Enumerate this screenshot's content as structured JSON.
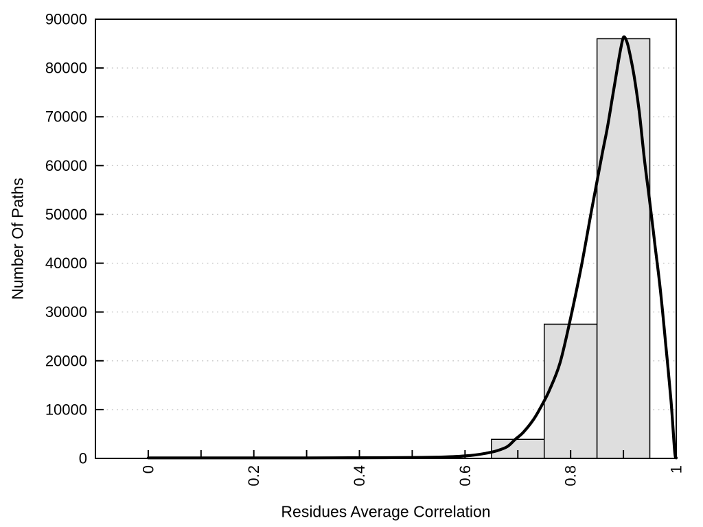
{
  "figure": {
    "background": "#ffffff"
  },
  "chart_data": {
    "type": "bar",
    "subtype": "histogram_with_density_curve",
    "title": "",
    "xlabel": "Residues Average Correlation",
    "ylabel": "Number Of Paths",
    "xlim": [
      -0.1,
      1.0
    ],
    "ylim": [
      0,
      90000
    ],
    "grid": "horizontal dotted gridlines at each y tick",
    "legend_position": "none",
    "x_ticks": {
      "start": 0,
      "end": 1,
      "step": 0.1,
      "label_rotation_deg": -90,
      "labeled": [
        [
          0,
          "0"
        ],
        [
          0.2,
          "0.2"
        ],
        [
          0.4,
          "0.4"
        ],
        [
          0.6,
          "0.6"
        ],
        [
          0.8,
          "0.8"
        ],
        [
          1,
          "1"
        ]
      ]
    },
    "y_ticks": [
      [
        0,
        "0"
      ],
      [
        10000,
        "10000"
      ],
      [
        20000,
        "20000"
      ],
      [
        30000,
        "30000"
      ],
      [
        40000,
        "40000"
      ],
      [
        50000,
        "50000"
      ],
      [
        60000,
        "60000"
      ],
      [
        70000,
        "70000"
      ],
      [
        80000,
        "80000"
      ],
      [
        90000,
        "90000"
      ]
    ],
    "histogram_bars": [
      {
        "x0": 0.65,
        "x1": 0.75,
        "value": 3900
      },
      {
        "x0": 0.75,
        "x1": 0.85,
        "value": 27500
      },
      {
        "x0": 0.85,
        "x1": 0.95,
        "value": 86000
      }
    ],
    "density_curve_points": [
      [
        0.0,
        100
      ],
      [
        0.05,
        100
      ],
      [
        0.1,
        100
      ],
      [
        0.15,
        100
      ],
      [
        0.2,
        100
      ],
      [
        0.25,
        100
      ],
      [
        0.3,
        100
      ],
      [
        0.35,
        110
      ],
      [
        0.4,
        120
      ],
      [
        0.45,
        140
      ],
      [
        0.5,
        180
      ],
      [
        0.55,
        260
      ],
      [
        0.58,
        360
      ],
      [
        0.6,
        500
      ],
      [
        0.62,
        720
      ],
      [
        0.64,
        1050
      ],
      [
        0.66,
        1550
      ],
      [
        0.68,
        2400
      ],
      [
        0.695,
        3900
      ],
      [
        0.71,
        5300
      ],
      [
        0.73,
        8000
      ],
      [
        0.745,
        10800
      ],
      [
        0.76,
        14000
      ],
      [
        0.78,
        19600
      ],
      [
        0.8,
        28800
      ],
      [
        0.82,
        39200
      ],
      [
        0.84,
        51000
      ],
      [
        0.86,
        62500
      ],
      [
        0.87,
        68000
      ],
      [
        0.88,
        74500
      ],
      [
        0.89,
        81000
      ],
      [
        0.895,
        84000
      ],
      [
        0.9,
        86300
      ],
      [
        0.905,
        85800
      ],
      [
        0.91,
        84000
      ],
      [
        0.92,
        78500
      ],
      [
        0.93,
        71000
      ],
      [
        0.94,
        61000
      ],
      [
        0.95,
        52500
      ],
      [
        0.96,
        43500
      ],
      [
        0.97,
        34500
      ],
      [
        0.98,
        23500
      ],
      [
        0.99,
        12000
      ],
      [
        0.997,
        1500
      ],
      [
        1.0,
        100
      ]
    ],
    "colors": {
      "bar_fill": "#dedede",
      "bar_border": "#000000",
      "curve": "#000000",
      "grid_line": "#c6c6c6",
      "axis": "#000000",
      "text": "#000000"
    }
  }
}
